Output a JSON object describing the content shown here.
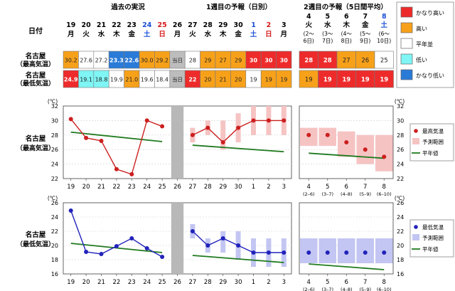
{
  "sections": {
    "past": "過去の実況",
    "week1": "1週目の予報（日別）",
    "week2": "2週目の予報（5日間平均）"
  },
  "date_label": "日付",
  "today_label": "当日",
  "unit_label": "(℃)",
  "days": [
    {
      "d": "19",
      "w": "月"
    },
    {
      "d": "20",
      "w": "火"
    },
    {
      "d": "21",
      "w": "水"
    },
    {
      "d": "22",
      "w": "木"
    },
    {
      "d": "23",
      "w": "金"
    },
    {
      "d": "24",
      "w": "土"
    },
    {
      "d": "25",
      "w": "日"
    },
    {
      "d": "26",
      "w": "月"
    },
    {
      "d": "27",
      "w": "火"
    },
    {
      "d": "28",
      "w": "水"
    },
    {
      "d": "29",
      "w": "木"
    },
    {
      "d": "30",
      "w": "金"
    },
    {
      "d": "1",
      "w": "土"
    },
    {
      "d": "2",
      "w": "日"
    },
    {
      "d": "3",
      "w": "月"
    }
  ],
  "periods": [
    {
      "d": "4",
      "w": "火",
      "r1": "(2〜",
      "r2": "6日)",
      "axis": "(2–6)"
    },
    {
      "d": "5",
      "w": "水",
      "r1": "(3〜",
      "r2": "7日)",
      "axis": "(3–7)"
    },
    {
      "d": "6",
      "w": "木",
      "r1": "(4〜",
      "r2": "8日)",
      "axis": "(4–8)"
    },
    {
      "d": "7",
      "w": "金",
      "r1": "(5〜",
      "r2": "9日)",
      "axis": "(5–9)"
    },
    {
      "d": "8",
      "w": "土",
      "r1": "(6〜",
      "r2": "10日)",
      "axis": "(6–10)"
    }
  ],
  "rows": [
    {
      "label1": "名古屋",
      "label2": "（最高気温）",
      "cells": [
        "30.2",
        "27.6",
        "27.2",
        "23.3",
        "22.6",
        "30.0",
        "29.2",
        "当日",
        "28",
        "29",
        "27",
        "29",
        "30",
        "30",
        "30"
      ],
      "cats": [
        "o",
        "w",
        "w",
        "b",
        "b",
        "o",
        "o",
        "g",
        "w",
        "o",
        "o",
        "o",
        "r",
        "r",
        "r"
      ],
      "weekly": [
        "28",
        "28",
        "27",
        "26",
        "25"
      ],
      "weekly_cats": [
        "r",
        "r",
        "o",
        "o",
        "w"
      ]
    },
    {
      "label1": "名古屋",
      "label2": "（最低気温）",
      "cells": [
        "24.9",
        "19.1",
        "18.8",
        "19.9",
        "21.0",
        "19.6",
        "18.4",
        "当日",
        "22",
        "20",
        "21",
        "20",
        "19",
        "19",
        "19"
      ],
      "cats": [
        "r",
        "c",
        "c",
        "w",
        "o",
        "w",
        "w",
        "g",
        "r",
        "o",
        "o",
        "o",
        "w",
        "o",
        "o"
      ],
      "weekly": [
        "19",
        "19",
        "19",
        "19",
        "19"
      ],
      "weekly_cats": [
        "o",
        "r",
        "r",
        "r",
        "r"
      ]
    }
  ],
  "legend": {
    "items": [
      {
        "label": "かなり高い",
        "color": "#ee2b2b"
      },
      {
        "label": "高い",
        "color": "#f7a11a"
      },
      {
        "label": "平年並",
        "color": "#ffffff"
      },
      {
        "label": "低い",
        "color": "#7ff5f5"
      },
      {
        "label": "かなり低い",
        "color": "#2a7bd8"
      }
    ]
  },
  "colors": {
    "r": "#ee2b2b",
    "o": "#f7a11a",
    "w": "#ffffff",
    "c": "#7ff5f5",
    "b": "#2a7bd8",
    "g": "#bdbdbd",
    "max_line": "#cc1f1f",
    "min_line": "#2222bb",
    "normal_line": "#1f7a1f",
    "max_range": "#f6c3c3",
    "min_range": "#c3c6f2"
  },
  "chart_data": [
    {
      "type": "line",
      "title": "名古屋（最高気温）",
      "ylim": [
        22,
        32
      ],
      "yticks": [
        22,
        24,
        26,
        28,
        30,
        32
      ],
      "x": [
        "19",
        "20",
        "21",
        "22",
        "23",
        "24",
        "25",
        "26",
        "27",
        "28",
        "29",
        "30",
        "1",
        "2",
        "3"
      ],
      "observed": [
        30.2,
        27.6,
        27.2,
        23.3,
        22.6,
        30.0,
        29.2
      ],
      "forecast": [
        28,
        29,
        27,
        29,
        30,
        30,
        30
      ],
      "forecast_range": [
        [
          27,
          29
        ],
        [
          28,
          30
        ],
        [
          26,
          30
        ],
        [
          27,
          31
        ],
        [
          28,
          32
        ],
        [
          28,
          32
        ],
        [
          28,
          32
        ]
      ],
      "normal_past": [
        28.4,
        27.1
      ],
      "normal_week1": [
        26.6,
        25.7
      ],
      "weekly_x": [
        "4",
        "5",
        "6",
        "7",
        "8"
      ],
      "weekly_forecast": [
        28,
        28,
        27,
        26,
        25
      ],
      "weekly_range": [
        [
          26.5,
          29
        ],
        [
          26.5,
          29
        ],
        [
          25,
          28.5
        ],
        [
          24,
          28
        ],
        [
          23,
          28
        ]
      ],
      "weekly_normal": [
        25.5,
        24.8
      ],
      "legend": {
        "point": "最高気温",
        "range": "予測範囲",
        "normal": "平年値"
      }
    },
    {
      "type": "line",
      "title": "名古屋（最低気温）",
      "ylim": [
        16,
        26
      ],
      "yticks": [
        16,
        18,
        20,
        22,
        24,
        26
      ],
      "x": [
        "19",
        "20",
        "21",
        "22",
        "23",
        "24",
        "25",
        "26",
        "27",
        "28",
        "29",
        "30",
        "1",
        "2",
        "3"
      ],
      "observed": [
        24.9,
        19.1,
        18.8,
        19.9,
        21.0,
        19.6,
        18.4
      ],
      "forecast": [
        22,
        20,
        21,
        20,
        19,
        19,
        19
      ],
      "forecast_range": [
        [
          21,
          23
        ],
        [
          19,
          21
        ],
        [
          19,
          22
        ],
        [
          18,
          22
        ],
        [
          17,
          21
        ],
        [
          17,
          21
        ],
        [
          17,
          21
        ]
      ],
      "normal_past": [
        20.3,
        19.0
      ],
      "normal_week1": [
        18.6,
        17.6
      ],
      "weekly_x": [
        "4",
        "5",
        "6",
        "7",
        "8"
      ],
      "weekly_forecast": [
        19,
        19,
        19,
        19,
        19
      ],
      "weekly_range": [
        [
          17.5,
          21
        ],
        [
          17.5,
          21
        ],
        [
          17.5,
          21
        ],
        [
          17.5,
          21
        ],
        [
          17.5,
          21
        ]
      ],
      "weekly_normal": [
        17.4,
        16.6
      ],
      "legend": {
        "point": "最低気温",
        "range": "予測範囲",
        "normal": "平年値"
      }
    }
  ]
}
